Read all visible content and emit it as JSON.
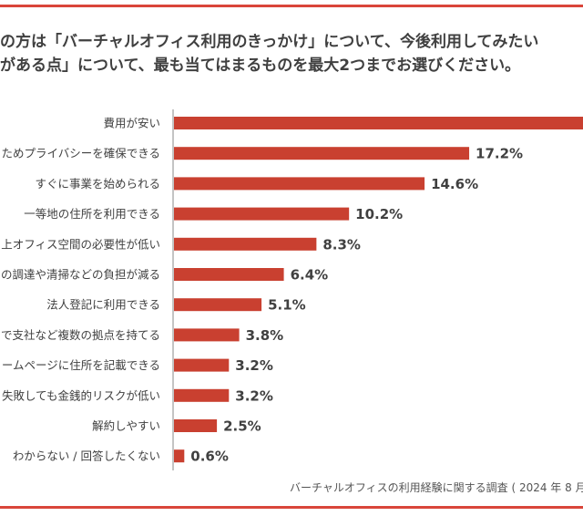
{
  "title_lines": [
    "の方は「バーチャルオフィス利用のきっかけ」について、今後利用してみたい",
    "がある点」について、最も当てはまるものを最大2つまでお選びください。"
  ],
  "source": "バーチャルオフィスの利用経験に関する調査 ( 2024 年 8 月、",
  "colors": {
    "bar": "#c94030",
    "accent_line": "#d9453a",
    "text": "#404040"
  },
  "chart_data": {
    "type": "bar",
    "orientation": "horizontal",
    "categories": [
      "費用が安い",
      "ためプライバシーを確保できる",
      "すぐに事業を始められる",
      "一等地の住所を利用できる",
      "上オフィス空間の必要性が低い",
      "の調達や清掃などの負担が減る",
      "法人登記に利用できる",
      "で支社など複数の拠点を持てる",
      "ームページに住所を記載できる",
      "失敗しても金銭的リスクが低い",
      "解約しやすい",
      "わからない / 回答したくない"
    ],
    "values": [
      null,
      17.2,
      14.6,
      10.2,
      8.3,
      6.4,
      5.1,
      3.8,
      3.2,
      3.2,
      2.5,
      0.6
    ],
    "value_labels": [
      "",
      "17.2%",
      "14.6%",
      "10.2%",
      "8.3%",
      "6.4%",
      "5.1%",
      "3.8%",
      "3.2%",
      "3.2%",
      "2.5%",
      "0.6%"
    ],
    "unit": "%",
    "xlim": [
      0,
      24
    ],
    "grid": false
  }
}
